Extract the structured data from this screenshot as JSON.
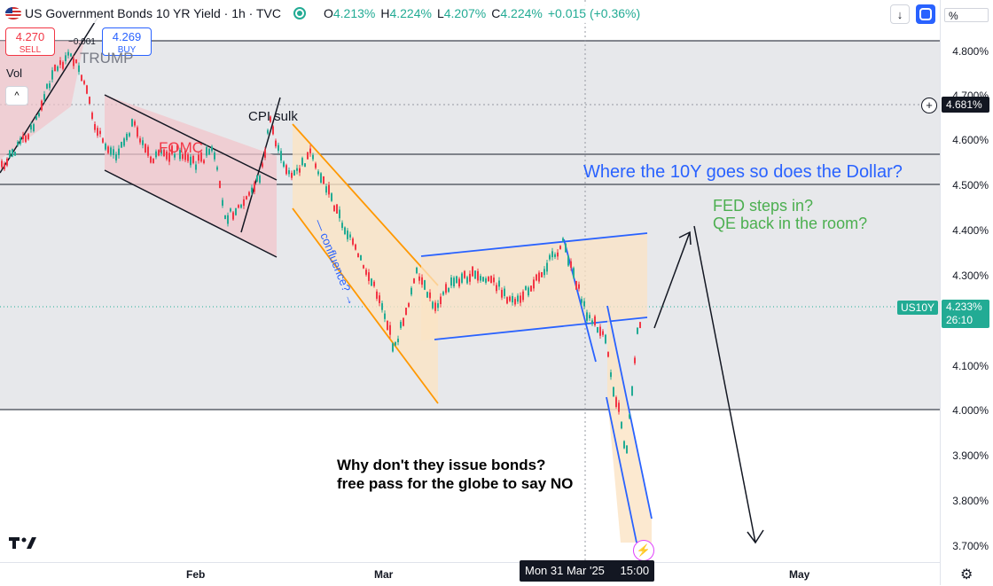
{
  "header": {
    "title": "US Government Bonds 10 YR Yield · 1h · TVC",
    "ohlc": [
      {
        "k": "O",
        "v": "4.213%"
      },
      {
        "k": "H",
        "v": "4.224%"
      },
      {
        "k": "L",
        "v": "4.207%"
      },
      {
        "k": "C",
        "v": "4.224%"
      }
    ],
    "change": "+0.015 (+0.36%)"
  },
  "trade": {
    "sell_price": "4.270",
    "sell_label": "SELL",
    "buy_price": "4.269",
    "buy_label": "BUY",
    "spread": "−0.001"
  },
  "legend": {
    "vol": "Vol",
    "collapse": "^"
  },
  "toolbar": {
    "down_arrow": "↓",
    "percent": "%"
  },
  "y_axis": {
    "ticks": [
      "4.800%",
      "4.700%",
      "4.600%",
      "4.500%",
      "4.400%",
      "4.300%",
      "4.200%",
      "4.100%",
      "4.000%",
      "3.900%",
      "3.800%",
      "3.700%"
    ],
    "crosshair_price": "4.681%",
    "current_symbol": "US10Y",
    "current_price": "4.233%",
    "countdown": "26:10"
  },
  "x_axis": {
    "ticks": [
      "Feb",
      "Mar",
      "May"
    ],
    "crosshair_date": "Mon 31 Mar '25",
    "crosshair_time": "15:00"
  },
  "annotations": {
    "trump": "TRUMP",
    "fomc": "FOMC",
    "cpi": "CPI sulk",
    "confluence": "— confluence? →",
    "dollar": "Where the 10Y goes so does the Dollar?",
    "fed1": "FED steps in?",
    "fed2": "QE back in the room?",
    "bonds1": "Why don't they issue bonds?",
    "bonds2": "free pass for the globe to say NO"
  },
  "colors": {
    "up": "#22ab94",
    "down": "#f23645",
    "accent": "#2962ff",
    "channel_orange": "#ff9800",
    "zone_red": "#f2c5cb",
    "zone_gray": "#e3e4e8",
    "annotation_blue": "#2962ff",
    "annotation_green": "#4caf50"
  },
  "icons": [
    "us-flag-icon",
    "market-open-dot-icon",
    "down-arrow-icon",
    "replay-icon",
    "plus-circle-icon",
    "tradingview-logo-icon",
    "lightning-icon",
    "settings-gear-icon"
  ]
}
